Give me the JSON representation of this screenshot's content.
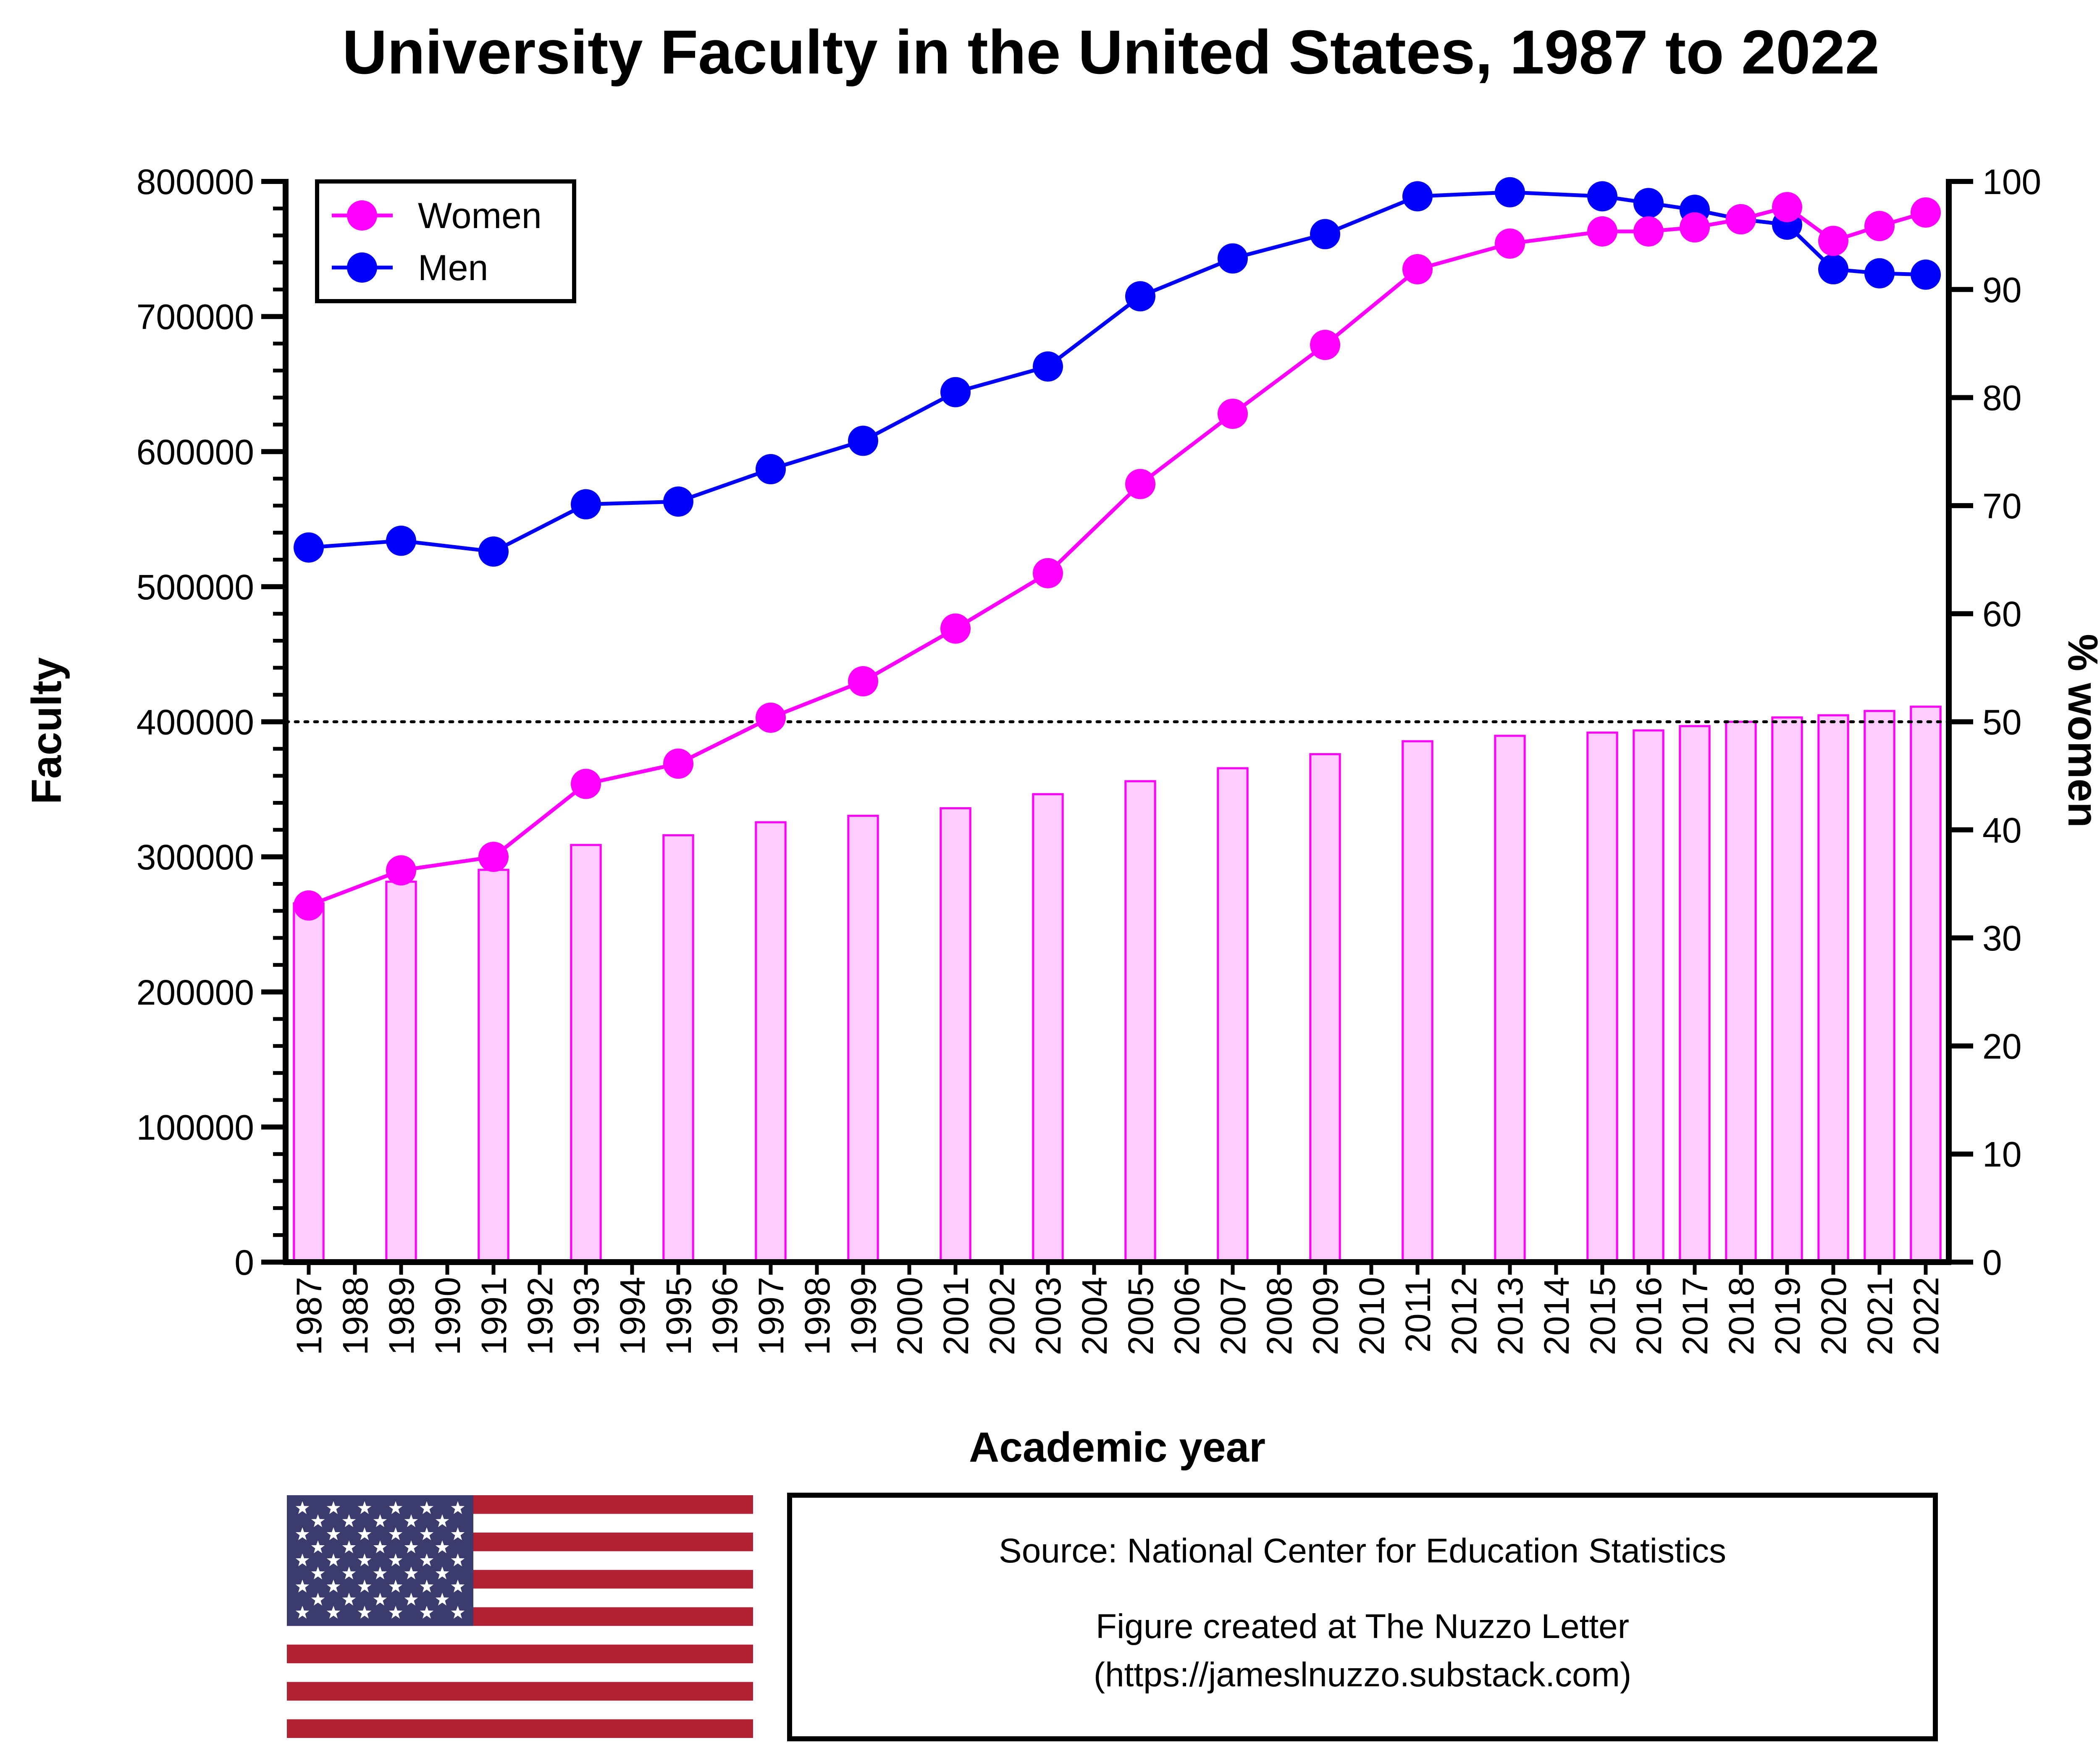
{
  "chart_data": {
    "type": "line",
    "title": "University Faculty in the United States, 1987 to 2022",
    "xlabel": "Academic year",
    "ylabel": "Faculty",
    "y2label": "% women",
    "ylim": [
      0,
      800000
    ],
    "y2lim": [
      0,
      100
    ],
    "yticks": [
      "0",
      "100000",
      "200000",
      "300000",
      "400000",
      "500000",
      "600000",
      "700000",
      "800000"
    ],
    "y2ticks": [
      "0",
      "10",
      "20",
      "30",
      "40",
      "50",
      "60",
      "70",
      "80",
      "90",
      "100"
    ],
    "categories": [
      "1987",
      "1988",
      "1989",
      "1990",
      "1991",
      "1992",
      "1993",
      "1994",
      "1995",
      "1996",
      "1997",
      "1998",
      "1999",
      "2000",
      "2001",
      "2002",
      "2003",
      "2004",
      "2005",
      "2006",
      "2007",
      "2008",
      "2009",
      "2010",
      "2011",
      "2012",
      "2013",
      "2014",
      "2015",
      "2016",
      "2017",
      "2018",
      "2019",
      "2020",
      "2021",
      "2022"
    ],
    "reference_line": {
      "axis": "y2",
      "value": 50,
      "style": "dotted"
    },
    "legend_position": "top-left",
    "series": [
      {
        "name": "Women",
        "type": "line",
        "axis": "y",
        "color": "#ff00ff",
        "x": [
          "1987",
          "1989",
          "1991",
          "1993",
          "1995",
          "1997",
          "1999",
          "2001",
          "2003",
          "2005",
          "2007",
          "2009",
          "2011",
          "2013",
          "2015",
          "2016",
          "2017",
          "2018",
          "2019",
          "2020",
          "2021",
          "2022"
        ],
        "values": [
          264000,
          290000,
          300000,
          354000,
          369000,
          403000,
          430000,
          469000,
          510000,
          576000,
          628000,
          679000,
          735000,
          754000,
          763000,
          763000,
          766000,
          772000,
          781000,
          756000,
          767000,
          777000
        ]
      },
      {
        "name": "Men",
        "type": "line",
        "axis": "y",
        "color": "#0000ff",
        "x": [
          "1987",
          "1989",
          "1991",
          "1993",
          "1995",
          "1997",
          "1999",
          "2001",
          "2003",
          "2005",
          "2007",
          "2009",
          "2011",
          "2013",
          "2015",
          "2016",
          "2017",
          "2018",
          "2019",
          "2020",
          "2021",
          "2022"
        ],
        "values": [
          529000,
          534000,
          526000,
          561000,
          563000,
          587000,
          608000,
          644000,
          663000,
          715000,
          743000,
          761000,
          789000,
          792000,
          789000,
          784000,
          779000,
          772000,
          768000,
          735000,
          732000,
          731000
        ]
      },
      {
        "type": "bar",
        "axis": "y2",
        "color": "#ffccff",
        "edge_color": "#ff00ff",
        "x": [
          "1987",
          "1989",
          "1991",
          "1993",
          "1995",
          "1997",
          "1999",
          "2001",
          "2003",
          "2005",
          "2007",
          "2009",
          "2011",
          "2013",
          "2015",
          "2016",
          "2017",
          "2018",
          "2019",
          "2020",
          "2021",
          "2022"
        ],
        "values": [
          33.2,
          35.2,
          36.3,
          38.6,
          39.5,
          40.7,
          41.3,
          42.0,
          43.3,
          44.5,
          45.7,
          47.0,
          48.2,
          48.7,
          49.0,
          49.2,
          49.6,
          50.0,
          50.4,
          50.6,
          51.0,
          51.4
        ]
      }
    ]
  },
  "footer": {
    "source_line": "Source: National Center for Education Statistics",
    "credit_line1": "Figure created at The Nuzzo Letter",
    "credit_line2": "(https://jameslnuzzo.substack.com)"
  },
  "flag": {
    "name": "United States flag",
    "red": "#b22234",
    "blue": "#3c3b6e",
    "white": "#ffffff"
  }
}
